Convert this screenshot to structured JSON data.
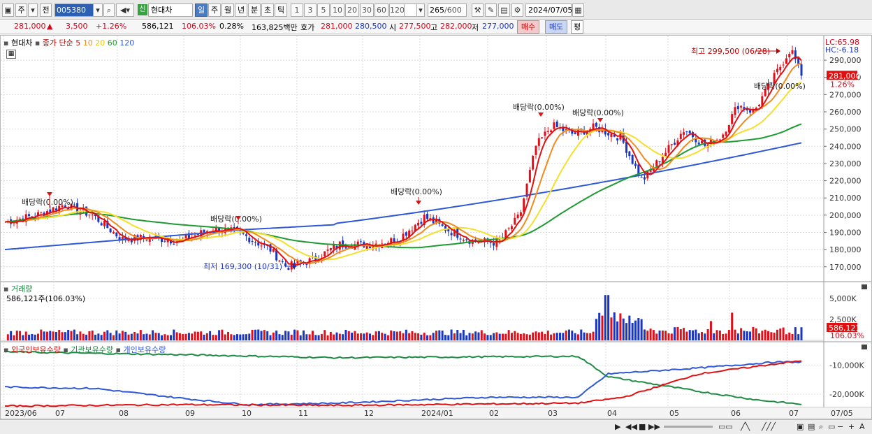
{
  "toolbar": {
    "market": "주",
    "mode": "전",
    "code": "005380",
    "new_badge": "신",
    "stock_name": "현대차",
    "periods": [
      "일",
      "주",
      "월",
      "년",
      "분",
      "초",
      "틱"
    ],
    "selected_period": "일",
    "intervals": [
      "1",
      "3",
      "5",
      "10",
      "20",
      "30",
      "60",
      "120"
    ],
    "count": "265",
    "count_total": "/600",
    "date": "2024/07/05"
  },
  "infobar": {
    "price": "281,000",
    "change": "3,500",
    "change_pct": "+1.26%",
    "volume": "586,121",
    "volume_ratio": "106.03%",
    "turnover": "0.28%",
    "amount": "163,825백만",
    "quote_label": "호가",
    "ask": "281,000",
    "bid": "280,500",
    "open_label": "시",
    "open": "277,500",
    "high_label": "고",
    "high": "282,000",
    "low_label": "저",
    "low": "277,000",
    "buy_label": "매수",
    "sell_label": "매도",
    "eval_label": "평"
  },
  "price_panel": {
    "name": "현대차",
    "legend_prefix": "종가 단순",
    "ma_labels": [
      "5",
      "10",
      "20",
      "60",
      "120"
    ],
    "lc": "LC:65.98",
    "hc": "HC:-6.18",
    "current_tag": "281,000",
    "current_pct": "1.26%",
    "high_note": "최고 299,500 (06/28)",
    "low_note": "최저 169,300 (10/31)",
    "dividend_notes": [
      "배당락(0.00%)",
      "배당락(0.00%)",
      "배당락(0.00%)",
      "배당락(0.00%)",
      "배당락(0.00%)",
      "배당락(0.00%)"
    ]
  },
  "volume_panel": {
    "title": "거래량",
    "value_text": "586,121주(106.03%)",
    "tag": "586,121",
    "tag_pct": "106.03%",
    "axis": [
      "5,000K",
      "2,500K"
    ]
  },
  "holdings_panel": {
    "series_labels": [
      "외국인보유수량",
      "기관보유수량",
      "개인보유수량"
    ],
    "axis": [
      "-10,000K",
      "-20,000K"
    ]
  },
  "x_labels": [
    "2023/06",
    "07",
    "08",
    "09",
    "10",
    "11",
    "12",
    "2024/01",
    "02",
    "03",
    "04",
    "05",
    "06",
    "07",
    "07/05"
  ],
  "price_axis": [
    "290,000",
    "280,000",
    "270,000",
    "260,000",
    "250,000",
    "240,000",
    "230,000",
    "220,000",
    "210,000",
    "200,000",
    "190,000",
    "180,000",
    "170,000"
  ],
  "chart_data": {
    "type": "line",
    "price_range": [
      163000,
      301000
    ],
    "colors": {
      "ma5": "#e01010",
      "ma10": "#f08c1e",
      "ma20": "#f4e02a",
      "ma60": "#1f9a31",
      "ma120": "#2f58d8",
      "up": "#e0101a",
      "down": "#1a35c0",
      "foreign": "#e01010",
      "institution": "#1e8a44",
      "individual": "#2f58d8"
    },
    "months": [
      {
        "label": "2023/06",
        "close": 198000
      },
      {
        "label": "07",
        "close": 206000
      },
      {
        "label": "08",
        "close": 184000
      },
      {
        "label": "09",
        "close": 187000
      },
      {
        "label": "10",
        "close": 192000
      },
      {
        "label": "11",
        "close": 176000
      },
      {
        "label": "12",
        "close": 183000
      },
      {
        "label": "2024/01",
        "close": 189000
      },
      {
        "label": "02",
        "close": 186000
      },
      {
        "label": "03",
        "close": 250000
      },
      {
        "label": "04",
        "close": 248000
      },
      {
        "label": "05",
        "close": 243000
      },
      {
        "label": "06",
        "close": 256000
      },
      {
        "label": "07",
        "close": 281000
      }
    ],
    "high": {
      "value": 299500,
      "date": "06/28"
    },
    "low": {
      "value": 169300,
      "date": "10/31"
    }
  }
}
